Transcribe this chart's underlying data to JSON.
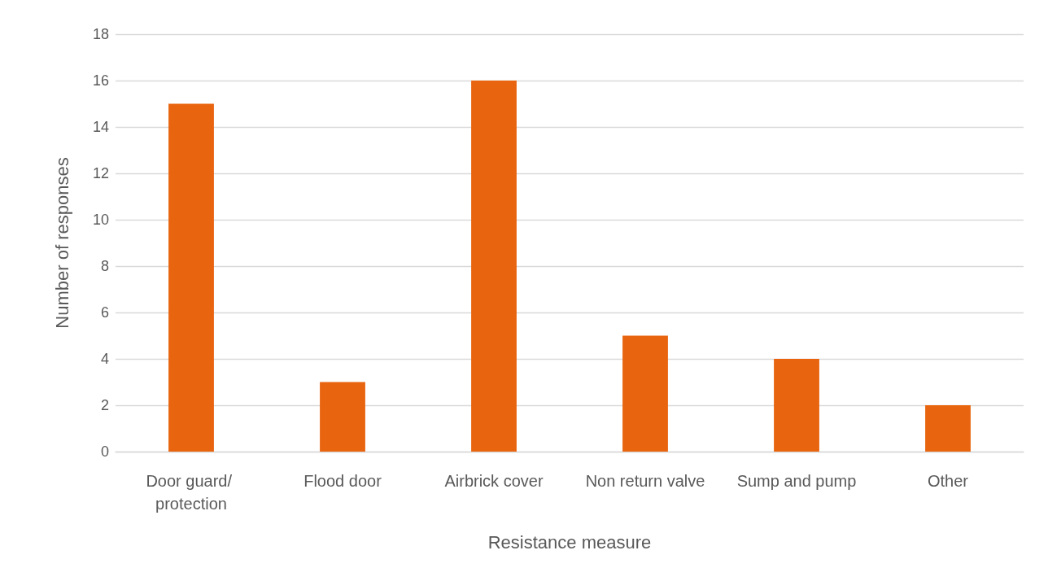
{
  "chart_data": {
    "type": "bar",
    "xlabel": "Resistance measure",
    "ylabel": "Number of responses",
    "categories": [
      "Door guard/ protection",
      "Flood door",
      "Airbrick cover",
      "Non return valve",
      "Sump and pump",
      "Other"
    ],
    "values": [
      15,
      3,
      16,
      5,
      4,
      2
    ],
    "color": "#e8640f",
    "ylim": [
      0,
      18
    ],
    "yticks": [
      0,
      2,
      4,
      6,
      8,
      10,
      12,
      14,
      16,
      18
    ],
    "grid": "y"
  }
}
